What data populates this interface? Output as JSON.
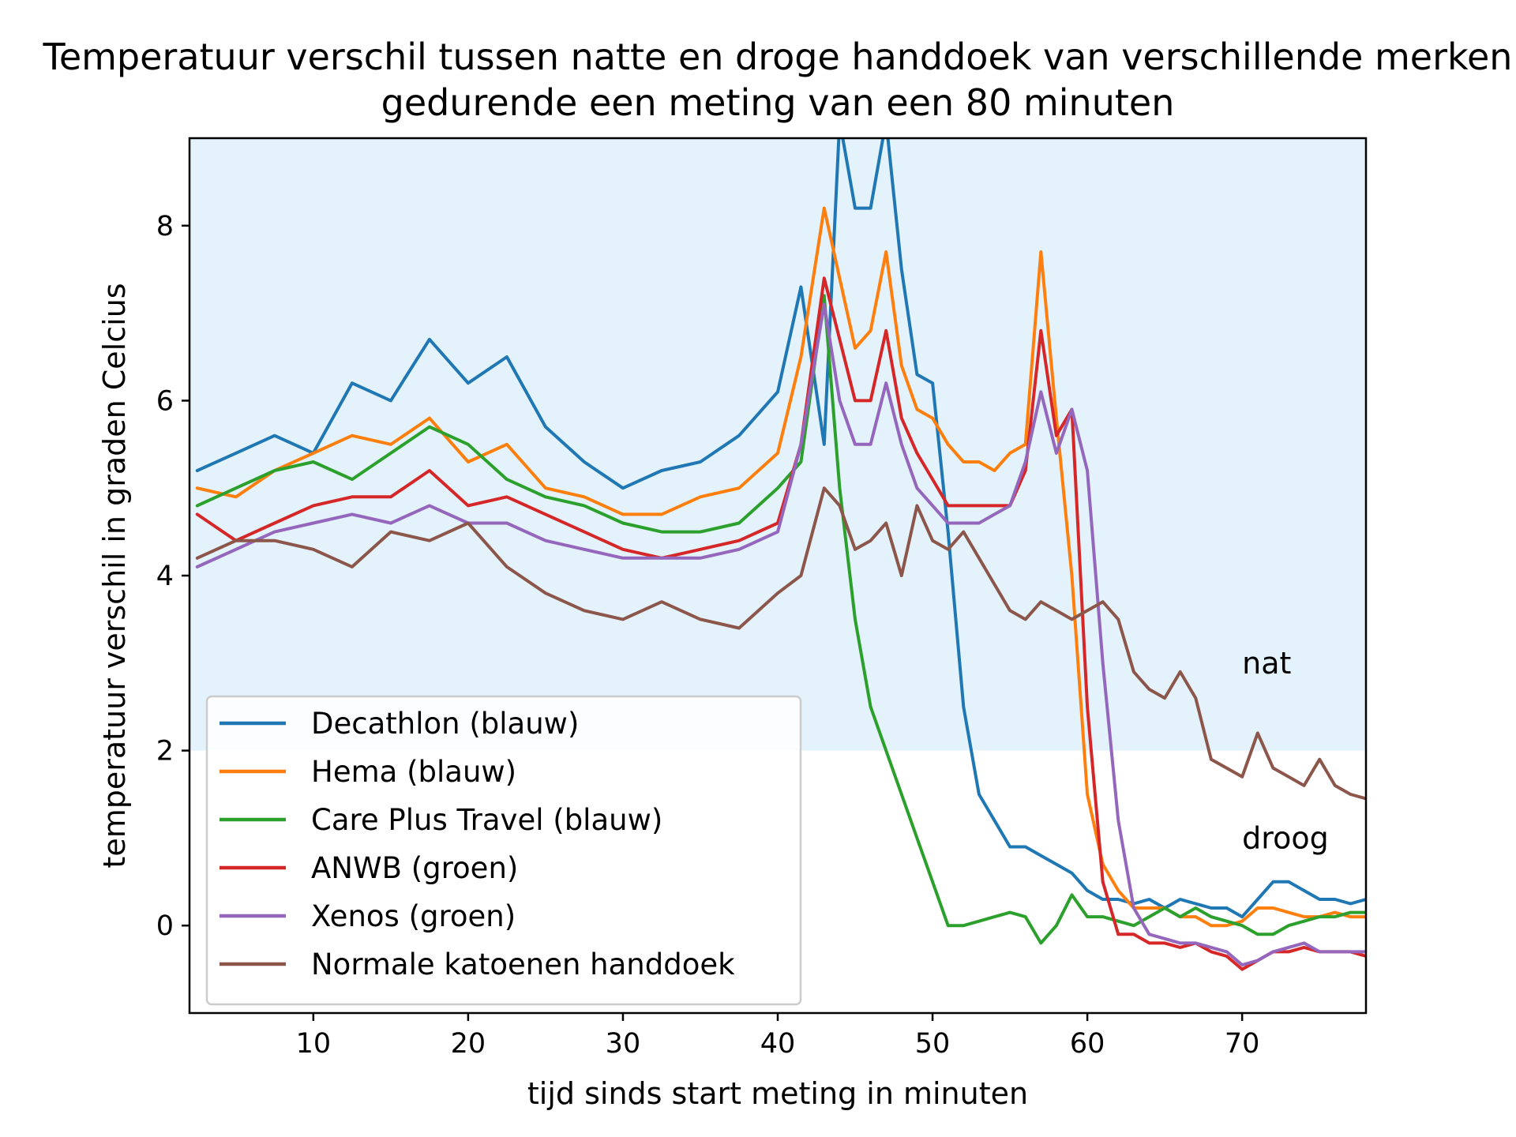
{
  "chart_data": {
    "type": "line",
    "title": [
      "Temperatuur verschil tussen natte en droge handdoek van verschillende merken",
      "gedurende een meting van een 80 minuten"
    ],
    "xlabel": "tijd sinds start meting in minuten",
    "ylabel": "temperatuur verschil in graden Celcius",
    "xlim": [
      2,
      78
    ],
    "ylim": [
      -1.0,
      9.0
    ],
    "xticks": [
      10,
      20,
      30,
      40,
      50,
      60,
      70
    ],
    "yticks": [
      0,
      2,
      4,
      6,
      8
    ],
    "grid": false,
    "legend_position": "lower-left",
    "regions": [
      {
        "label": "nat",
        "y_from": 2,
        "y_to": 9.0,
        "color": "#e3f2fb",
        "label_x": 70,
        "label_y": 3.0
      },
      {
        "label": "droog",
        "y_from": -1.0,
        "y_to": 2,
        "color": "#ffffff",
        "label_x": 70,
        "label_y": 1.0
      }
    ],
    "x": [
      2.5,
      5,
      7.5,
      10,
      12.5,
      15,
      17.5,
      20,
      22.5,
      25,
      27.5,
      30,
      32.5,
      35,
      37.5,
      40,
      41.5,
      43,
      44,
      45,
      46,
      47,
      48,
      49,
      50,
      51,
      52,
      53,
      54,
      55,
      56,
      57,
      58,
      59,
      60,
      61,
      62,
      63,
      64,
      65,
      66,
      67,
      68,
      69,
      70,
      71,
      72,
      73,
      74,
      75,
      76,
      77,
      78
    ],
    "series": [
      {
        "name": "Decathlon (blauw)",
        "color": "#1f77b4",
        "values": [
          5.2,
          5.4,
          5.6,
          5.4,
          6.2,
          6.0,
          6.7,
          6.2,
          6.5,
          5.7,
          5.3,
          5.0,
          5.2,
          5.3,
          5.6,
          6.1,
          7.3,
          5.5,
          9.2,
          8.2,
          8.2,
          9.2,
          7.5,
          6.3,
          6.2,
          4.5,
          2.5,
          1.5,
          1.2,
          0.9,
          0.9,
          0.8,
          0.7,
          0.6,
          0.4,
          0.3,
          0.3,
          0.25,
          0.3,
          0.2,
          0.3,
          0.25,
          0.2,
          0.2,
          0.1,
          0.3,
          0.5,
          0.5,
          0.4,
          0.3,
          0.3,
          0.25,
          0.3
        ]
      },
      {
        "name": "Hema (blauw)",
        "color": "#ff7f0e",
        "values": [
          5.0,
          4.9,
          5.2,
          5.4,
          5.6,
          5.5,
          5.8,
          5.3,
          5.5,
          5.0,
          4.9,
          4.7,
          4.7,
          4.9,
          5.0,
          5.4,
          6.5,
          8.2,
          7.4,
          6.6,
          6.8,
          7.7,
          6.4,
          5.9,
          5.8,
          5.5,
          5.3,
          5.3,
          5.2,
          5.4,
          5.5,
          7.7,
          5.8,
          4.0,
          1.5,
          0.7,
          0.4,
          0.2,
          0.2,
          0.2,
          0.1,
          0.1,
          0.0,
          0.0,
          0.05,
          0.2,
          0.2,
          0.15,
          0.1,
          0.1,
          0.15,
          0.1,
          0.1
        ]
      },
      {
        "name": "Care Plus Travel (blauw)",
        "color": "#2ca02c",
        "values": [
          4.8,
          5.0,
          5.2,
          5.3,
          5.1,
          5.4,
          5.7,
          5.5,
          5.1,
          4.9,
          4.8,
          4.6,
          4.5,
          4.5,
          4.6,
          5.0,
          5.3,
          7.2,
          5.0,
          3.5,
          2.5,
          2.0,
          1.5,
          1.0,
          0.5,
          0.0,
          0.0,
          0.05,
          0.1,
          0.15,
          0.1,
          -0.2,
          0.0,
          0.35,
          0.1,
          0.1,
          0.05,
          0.0,
          0.1,
          0.2,
          0.1,
          0.2,
          0.1,
          0.05,
          0.0,
          -0.1,
          -0.1,
          0.0,
          0.05,
          0.1,
          0.1,
          0.15,
          0.15
        ]
      },
      {
        "name": "ANWB (groen)",
        "color": "#d62728",
        "values": [
          4.7,
          4.4,
          4.6,
          4.8,
          4.9,
          4.9,
          5.2,
          4.8,
          4.9,
          4.7,
          4.5,
          4.3,
          4.2,
          4.3,
          4.4,
          4.6,
          5.5,
          7.4,
          6.7,
          6.0,
          6.0,
          6.8,
          5.8,
          5.4,
          5.1,
          4.8,
          4.8,
          4.8,
          4.8,
          4.8,
          5.2,
          6.8,
          5.6,
          5.9,
          2.5,
          0.5,
          -0.1,
          -0.1,
          -0.2,
          -0.2,
          -0.25,
          -0.2,
          -0.3,
          -0.35,
          -0.5,
          -0.4,
          -0.3,
          -0.3,
          -0.25,
          -0.3,
          -0.3,
          -0.3,
          -0.35
        ]
      },
      {
        "name": "Xenos (groen)",
        "color": "#9467bd",
        "values": [
          4.1,
          4.3,
          4.5,
          4.6,
          4.7,
          4.6,
          4.8,
          4.6,
          4.6,
          4.4,
          4.3,
          4.2,
          4.2,
          4.2,
          4.3,
          4.5,
          5.5,
          7.1,
          6.0,
          5.5,
          5.5,
          6.2,
          5.5,
          5.0,
          4.8,
          4.6,
          4.6,
          4.6,
          4.7,
          4.8,
          5.3,
          6.1,
          5.4,
          5.9,
          5.2,
          3.0,
          1.2,
          0.2,
          -0.1,
          -0.15,
          -0.2,
          -0.2,
          -0.25,
          -0.3,
          -0.45,
          -0.4,
          -0.3,
          -0.25,
          -0.2,
          -0.3,
          -0.3,
          -0.3,
          -0.3
        ]
      },
      {
        "name": "Normale katoenen handdoek",
        "color": "#8c564b",
        "values": [
          4.2,
          4.4,
          4.4,
          4.3,
          4.1,
          4.5,
          4.4,
          4.6,
          4.1,
          3.8,
          3.6,
          3.5,
          3.7,
          3.5,
          3.4,
          3.8,
          4.0,
          5.0,
          4.8,
          4.3,
          4.4,
          4.6,
          4.0,
          4.8,
          4.4,
          4.3,
          4.5,
          4.2,
          3.9,
          3.6,
          3.5,
          3.7,
          3.6,
          3.5,
          3.6,
          3.7,
          3.5,
          2.9,
          2.7,
          2.6,
          2.9,
          2.6,
          1.9,
          1.8,
          1.7,
          2.2,
          1.8,
          1.7,
          1.6,
          1.9,
          1.6,
          1.5,
          1.45
        ]
      }
    ]
  }
}
